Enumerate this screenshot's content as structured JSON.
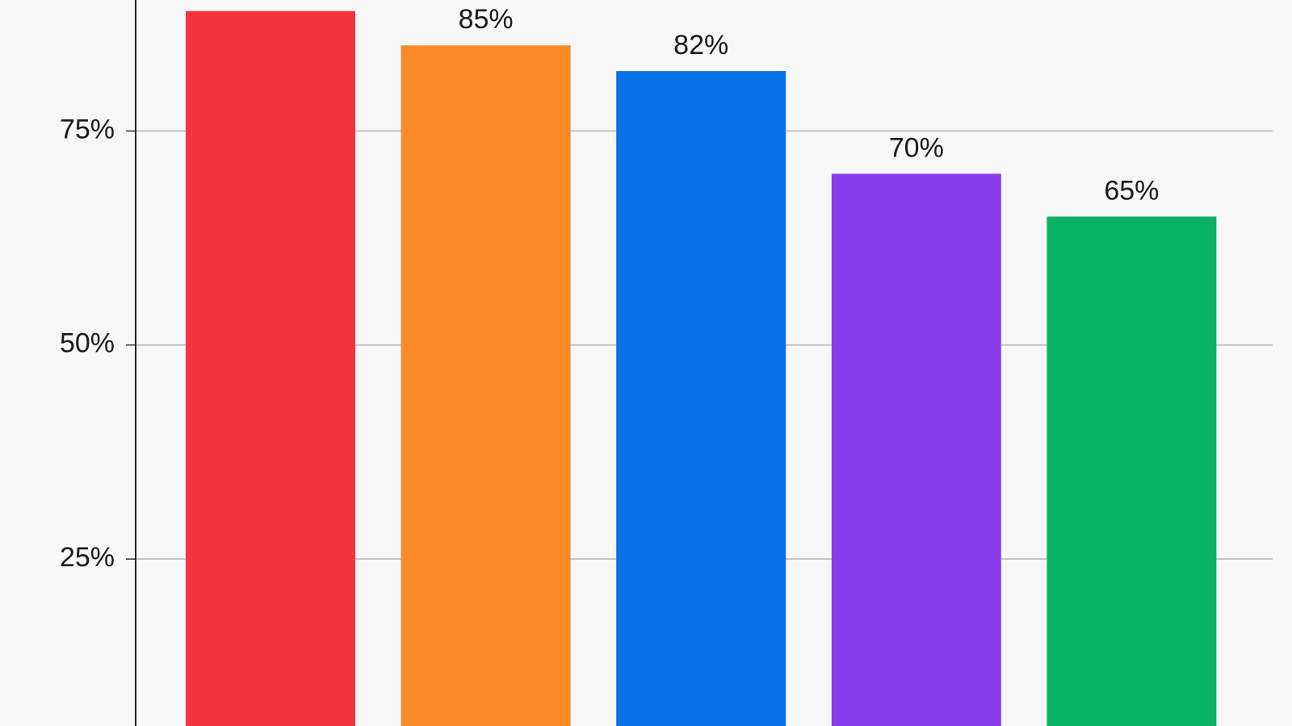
{
  "chart_data": {
    "type": "bar",
    "values": [
      89,
      85,
      82,
      70,
      65
    ],
    "value_labels": [
      null,
      "85%",
      "82%",
      "70%",
      "65%"
    ],
    "colors": [
      "#f5333f",
      "#f98a25",
      "#0a72e8",
      "#8a3cea",
      "#08b262"
    ],
    "ylim": [
      5.5,
      90.3
    ],
    "yticks": [
      {
        "value": 25,
        "label": "25%"
      },
      {
        "value": 50,
        "label": "50%"
      },
      {
        "value": 75,
        "label": "75%"
      }
    ],
    "grid": true
  }
}
